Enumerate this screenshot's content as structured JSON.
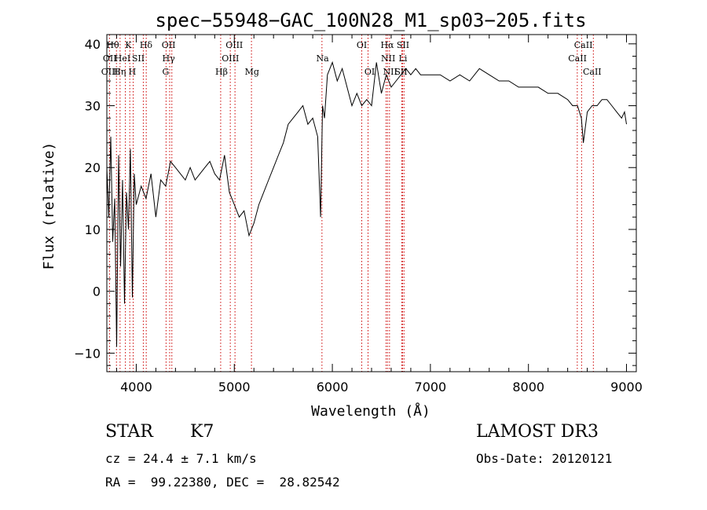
{
  "chart_data": {
    "type": "line",
    "title": "spec−55948−GAC_100N28_M1_sp03−205.fits",
    "xlabel": "Wavelength (Å)",
    "ylabel": "Flux (relative)",
    "xlim": [
      3700,
      9100
    ],
    "ylim": [
      -13,
      41.5
    ],
    "xticks": [
      4000,
      5000,
      6000,
      7000,
      8000,
      9000
    ],
    "xtick_labels": [
      "4000",
      "5000",
      "6000",
      "7000",
      "8000",
      "9000"
    ],
    "yticks": [
      -10,
      0,
      10,
      20,
      30,
      40
    ],
    "ytick_labels": [
      "−10",
      "0",
      "10",
      "20",
      "30",
      "40"
    ],
    "grid": false,
    "series": [
      {
        "name": "spectrum",
        "x": [
          3700,
          3720,
          3740,
          3760,
          3780,
          3800,
          3820,
          3840,
          3860,
          3880,
          3900,
          3920,
          3940,
          3960,
          3980,
          4000,
          4050,
          4100,
          4150,
          4200,
          4250,
          4300,
          4350,
          4400,
          4450,
          4500,
          4550,
          4600,
          4650,
          4700,
          4750,
          4800,
          4850,
          4900,
          4950,
          5000,
          5050,
          5100,
          5150,
          5200,
          5250,
          5300,
          5350,
          5400,
          5450,
          5500,
          5550,
          5600,
          5650,
          5700,
          5750,
          5800,
          5850,
          5880,
          5900,
          5920,
          5950,
          6000,
          6050,
          6100,
          6150,
          6200,
          6250,
          6300,
          6350,
          6400,
          6450,
          6500,
          6550,
          6600,
          6650,
          6700,
          6750,
          6800,
          6850,
          6900,
          6950,
          7000,
          7100,
          7200,
          7300,
          7400,
          7500,
          7600,
          7700,
          7800,
          7900,
          8000,
          8100,
          8200,
          8300,
          8400,
          8450,
          8500,
          8540,
          8560,
          8600,
          8650,
          8700,
          8750,
          8800,
          8850,
          8900,
          8950,
          8980,
          9000
        ],
        "y": [
          20,
          12,
          25,
          8,
          15,
          -9,
          22,
          4,
          18,
          -2,
          16,
          10,
          23,
          -1,
          19,
          14,
          17,
          15,
          19,
          12,
          18,
          17,
          21,
          20,
          19,
          18,
          20,
          18,
          19,
          20,
          21,
          19,
          18,
          22,
          16,
          14,
          12,
          13,
          9,
          11,
          14,
          16,
          18,
          20,
          22,
          24,
          27,
          28,
          29,
          30,
          27,
          28,
          25,
          12,
          30,
          28,
          35,
          37,
          34,
          36,
          33,
          30,
          32,
          30,
          31,
          30,
          37,
          32,
          35,
          33,
          34,
          35,
          36,
          35,
          36,
          35,
          35,
          35,
          35,
          34,
          35,
          34,
          36,
          35,
          34,
          34,
          33,
          33,
          33,
          32,
          32,
          31,
          30,
          30,
          28,
          24,
          29,
          30,
          30,
          31,
          31,
          30,
          29,
          28,
          29,
          27
        ]
      }
    ],
    "lines": [
      {
        "name": "O II",
        "x": 3727
      },
      {
        "name": "Hθ",
        "x": 3798
      },
      {
        "name": "Hη",
        "x": 3835
      },
      {
        "name": "He I",
        "x": 3889
      },
      {
        "name": "K",
        "x": 3934
      },
      {
        "name": "H",
        "x": 3969
      },
      {
        "name": "Hδ",
        "x": 4102
      },
      {
        "name": "S II",
        "x": 4072
      },
      {
        "name": "G",
        "x": 4304
      },
      {
        "name": "Hγ",
        "x": 4341
      },
      {
        "name": "O III",
        "x": 4363
      },
      {
        "name": "Hβ",
        "x": 4861
      },
      {
        "name": "O III",
        "x": 4959
      },
      {
        "name": "O III",
        "x": 5007
      },
      {
        "name": "Mg",
        "x": 5175
      },
      {
        "name": "Na",
        "x": 5894
      },
      {
        "name": "O I",
        "x": 6300
      },
      {
        "name": "O I",
        "x": 6364
      },
      {
        "name": "N II",
        "x": 6548
      },
      {
        "name": "Hα",
        "x": 6563
      },
      {
        "name": "N II",
        "x": 6583
      },
      {
        "name": "Li",
        "x": 6708
      },
      {
        "name": "S II",
        "x": 6716
      },
      {
        "name": "S II",
        "x": 6731
      },
      {
        "name": "Ca II",
        "x": 8498
      },
      {
        "name": "Ca II",
        "x": 8542
      },
      {
        "name": "Ca II",
        "x": 8662
      }
    ],
    "line_labels": [
      {
        "text": "Hθ",
        "row": 1,
        "x": 3760
      },
      {
        "text": "K",
        "x": 3920,
        "row": 1
      },
      {
        "text": "Hδ",
        "x": 4100,
        "row": 1
      },
      {
        "text": "OII",
        "x": 4330,
        "row": 1
      },
      {
        "text": "OIII",
        "x": 5000,
        "row": 1
      },
      {
        "text": "OI",
        "x": 6300,
        "row": 1
      },
      {
        "text": "Hα",
        "x": 6560,
        "row": 1
      },
      {
        "text": "SII",
        "x": 6720,
        "row": 1
      },
      {
        "text": "CaII",
        "x": 8560,
        "row": 1
      },
      {
        "text": "OII",
        "x": 3730,
        "row": 2
      },
      {
        "text": "HeI",
        "x": 3860,
        "row": 2
      },
      {
        "text": "SII",
        "x": 4020,
        "row": 2
      },
      {
        "text": "Hγ",
        "x": 4330,
        "row": 2
      },
      {
        "text": "OIII",
        "x": 4960,
        "row": 2
      },
      {
        "text": "Na",
        "x": 5900,
        "row": 2
      },
      {
        "text": "NII",
        "x": 6570,
        "row": 2
      },
      {
        "text": "Li",
        "x": 6720,
        "row": 2
      },
      {
        "text": "CaII",
        "x": 8500,
        "row": 2
      },
      {
        "text": "OIII",
        "x": 3730,
        "row": 3
      },
      {
        "text": "Hη",
        "x": 3830,
        "row": 3
      },
      {
        "text": "H",
        "x": 3960,
        "row": 3
      },
      {
        "text": "G",
        "x": 4300,
        "row": 3
      },
      {
        "text": "Hβ",
        "x": 4870,
        "row": 3
      },
      {
        "text": "Mg",
        "x": 5180,
        "row": 3
      },
      {
        "text": "OI",
        "x": 6380,
        "row": 3
      },
      {
        "text": "NII",
        "x": 6590,
        "row": 3
      },
      {
        "text": "SII",
        "x": 6700,
        "row": 3
      },
      {
        "text": "CaII",
        "x": 8650,
        "row": 3
      }
    ]
  },
  "info": {
    "object_class": "STAR",
    "subclass": "K7",
    "survey": "LAMOST DR3",
    "cz": "cz = 24.4 ± 7.1 km/s",
    "obs_date": "Obs-Date: 20120121",
    "coords": "RA =  99.22380, DEC =  28.82542"
  },
  "colors": {
    "axis": "#000000",
    "line": "#000000",
    "marker_line": "#cc0000"
  }
}
